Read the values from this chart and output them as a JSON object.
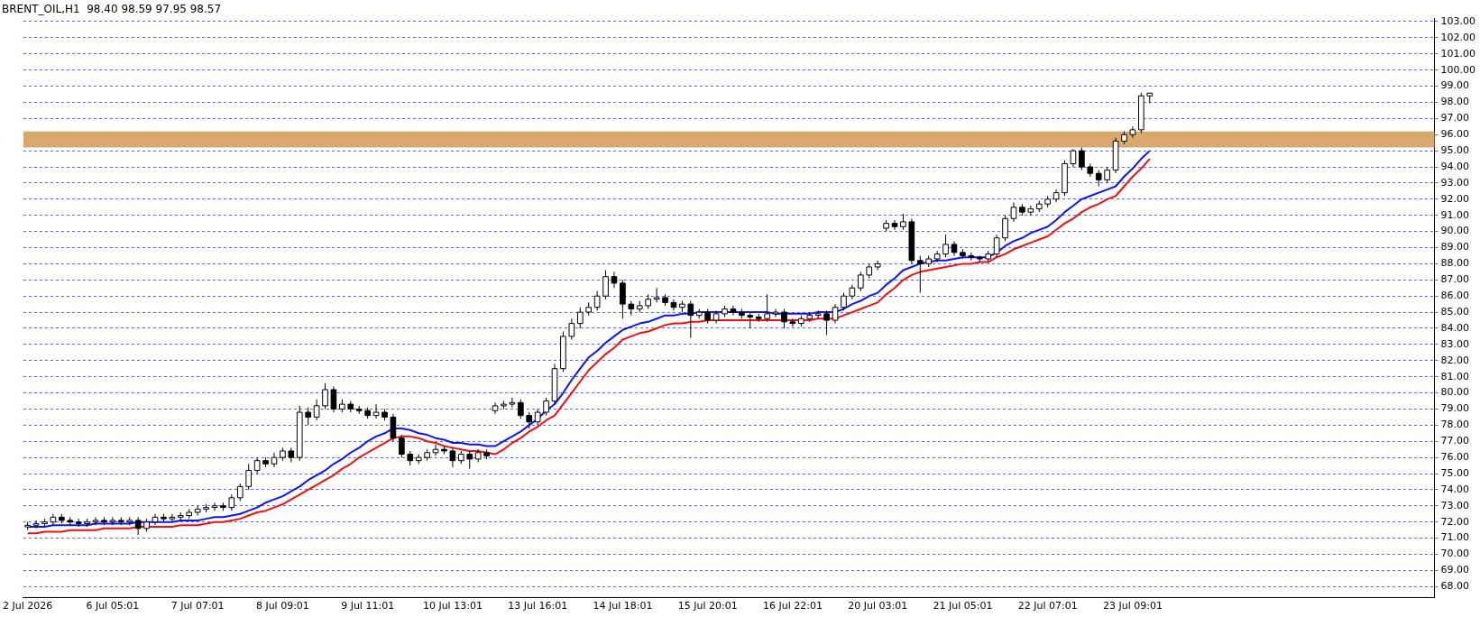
{
  "chart_data": {
    "type": "candlestick",
    "title": "BRENT_OIL,H1  98.40 98.59 97.95 98.57",
    "categories": [
      "2 Jul 2026",
      null,
      null,
      null,
      null,
      null,
      null,
      null,
      null,
      null,
      "6 Jul 05:01",
      null,
      null,
      null,
      null,
      null,
      null,
      null,
      null,
      null,
      "7 Jul 07:01",
      null,
      null,
      null,
      null,
      null,
      null,
      null,
      null,
      null,
      "8 Jul 09:01",
      null,
      null,
      null,
      null,
      null,
      null,
      null,
      null,
      null,
      "9 Jul 11:01",
      null,
      null,
      null,
      null,
      null,
      null,
      null,
      null,
      null,
      "10 Jul 13:01",
      null,
      null,
      null,
      null,
      null,
      null,
      null,
      null,
      null,
      "13 Jul 16:01",
      null,
      null,
      null,
      null,
      null,
      null,
      null,
      null,
      null,
      "14 Jul 18:01",
      null,
      null,
      null,
      null,
      null,
      null,
      null,
      null,
      null,
      "15 Jul 20:01",
      null,
      null,
      null,
      null,
      null,
      null,
      null,
      null,
      null,
      "16 Jul 22:01",
      null,
      null,
      null,
      null,
      null,
      null,
      null,
      null,
      null,
      "20 Jul 03:01",
      null,
      null,
      null,
      null,
      null,
      null,
      null,
      null,
      null,
      "21 Jul 05:01",
      null,
      null,
      null,
      null,
      null,
      null,
      null,
      null,
      null,
      "22 Jul 07:01",
      null,
      null,
      null,
      null,
      null,
      null,
      null,
      null,
      null,
      "23 Jul 09:01",
      null,
      null,
      null,
      null,
      null,
      null,
      null,
      null,
      null,
      null,
      null,
      null,
      null,
      null,
      null,
      null,
      null,
      null,
      null,
      null,
      null,
      null,
      null,
      null,
      null,
      null,
      null,
      null,
      null,
      null,
      null,
      null,
      null,
      null,
      null
    ],
    "ohlc": [
      [
        71.7,
        72.0,
        71.5,
        71.8
      ],
      [
        71.8,
        72.1,
        71.6,
        71.9
      ],
      [
        71.9,
        72.2,
        71.7,
        72.0
      ],
      [
        72.0,
        72.5,
        71.8,
        72.3
      ],
      [
        72.3,
        72.5,
        71.9,
        72.1
      ],
      [
        72.1,
        72.3,
        71.8,
        72.0
      ],
      [
        72.0,
        72.2,
        71.7,
        71.9
      ],
      [
        71.9,
        72.2,
        71.7,
        72.0
      ],
      [
        72.0,
        72.3,
        71.8,
        72.1
      ],
      [
        72.1,
        72.3,
        71.8,
        72.0
      ],
      [
        72.0,
        72.3,
        71.8,
        72.1
      ],
      [
        72.1,
        72.3,
        71.8,
        72.0
      ],
      [
        72.0,
        72.3,
        71.8,
        72.1
      ],
      [
        72.1,
        72.3,
        71.2,
        71.6
      ],
      [
        71.6,
        72.2,
        71.4,
        72.0
      ],
      [
        72.0,
        72.5,
        71.8,
        72.3
      ],
      [
        72.3,
        72.5,
        72.0,
        72.2
      ],
      [
        72.2,
        72.5,
        72.0,
        72.3
      ],
      [
        72.3,
        72.6,
        72.1,
        72.4
      ],
      [
        72.4,
        72.8,
        72.2,
        72.6
      ],
      [
        72.6,
        73.0,
        72.4,
        72.8
      ],
      [
        72.8,
        73.1,
        72.6,
        72.9
      ],
      [
        72.9,
        73.2,
        72.7,
        73.0
      ],
      [
        73.0,
        73.2,
        72.7,
        72.9
      ],
      [
        72.9,
        73.7,
        72.7,
        73.5
      ],
      [
        73.5,
        74.4,
        73.3,
        74.2
      ],
      [
        74.2,
        75.6,
        74.0,
        75.2
      ],
      [
        75.2,
        76.0,
        75.0,
        75.8
      ],
      [
        75.8,
        76.0,
        75.4,
        75.6
      ],
      [
        75.6,
        76.3,
        75.4,
        76.0
      ],
      [
        76.0,
        76.6,
        75.8,
        76.4
      ],
      [
        76.4,
        76.6,
        75.7,
        76.0
      ],
      [
        76.0,
        79.2,
        75.8,
        78.8
      ],
      [
        78.8,
        79.1,
        78.0,
        78.5
      ],
      [
        78.5,
        79.6,
        78.3,
        79.2
      ],
      [
        79.2,
        80.6,
        79.0,
        80.2
      ],
      [
        80.2,
        80.4,
        78.8,
        79.0
      ],
      [
        79.0,
        79.6,
        78.8,
        79.3
      ],
      [
        79.3,
        79.5,
        78.8,
        79.0
      ],
      [
        79.0,
        79.2,
        78.7,
        78.9
      ],
      [
        78.9,
        79.1,
        78.4,
        78.6
      ],
      [
        78.6,
        79.3,
        78.4,
        78.8
      ],
      [
        78.8,
        79.0,
        78.3,
        78.5
      ],
      [
        78.5,
        78.7,
        77.0,
        77.2
      ],
      [
        77.2,
        77.4,
        76.0,
        76.2
      ],
      [
        76.2,
        76.4,
        75.5,
        75.8
      ],
      [
        75.8,
        76.2,
        75.6,
        76.0
      ],
      [
        76.0,
        76.5,
        75.8,
        76.3
      ],
      [
        76.3,
        76.8,
        76.1,
        76.5
      ],
      [
        76.5,
        76.7,
        76.2,
        76.4
      ],
      [
        76.4,
        76.6,
        75.4,
        75.8
      ],
      [
        75.8,
        76.4,
        75.6,
        76.2
      ],
      [
        76.2,
        76.4,
        75.3,
        75.9
      ],
      [
        75.9,
        76.5,
        75.7,
        76.3
      ],
      [
        76.3,
        76.5,
        75.9,
        76.1
      ],
      [
        78.9,
        79.4,
        78.7,
        79.2
      ],
      [
        79.2,
        79.5,
        79.0,
        79.3
      ],
      [
        79.3,
        79.7,
        79.1,
        79.4
      ],
      [
        79.4,
        79.6,
        78.4,
        78.6
      ],
      [
        78.6,
        78.8,
        77.8,
        78.2
      ],
      [
        78.2,
        79.0,
        78.0,
        78.8
      ],
      [
        78.8,
        79.7,
        78.6,
        79.5
      ],
      [
        79.5,
        81.8,
        79.3,
        81.5
      ],
      [
        81.5,
        83.8,
        81.3,
        83.5
      ],
      [
        83.5,
        84.6,
        83.3,
        84.3
      ],
      [
        84.3,
        85.3,
        84.0,
        85.0
      ],
      [
        85.0,
        85.6,
        84.8,
        85.3
      ],
      [
        85.3,
        86.3,
        85.1,
        86.0
      ],
      [
        86.0,
        87.6,
        85.8,
        87.2
      ],
      [
        87.2,
        87.5,
        86.5,
        86.8
      ],
      [
        86.8,
        87.0,
        84.6,
        85.5
      ],
      [
        85.5,
        85.7,
        84.8,
        85.2
      ],
      [
        85.2,
        85.7,
        85.0,
        85.4
      ],
      [
        85.4,
        86.1,
        85.2,
        85.8
      ],
      [
        85.8,
        86.5,
        85.6,
        85.9
      ],
      [
        85.9,
        86.1,
        85.4,
        85.6
      ],
      [
        85.6,
        85.8,
        85.1,
        85.3
      ],
      [
        85.3,
        85.7,
        85.0,
        85.5
      ],
      [
        85.5,
        85.7,
        83.4,
        84.8
      ],
      [
        84.8,
        85.2,
        84.6,
        85.0
      ],
      [
        85.0,
        85.2,
        84.3,
        84.5
      ],
      [
        84.5,
        85.1,
        84.3,
        84.9
      ],
      [
        84.9,
        85.4,
        84.7,
        85.2
      ],
      [
        85.2,
        85.4,
        84.8,
        85.0
      ],
      [
        85.0,
        85.2,
        84.6,
        84.8
      ],
      [
        84.8,
        85.0,
        84.0,
        84.7
      ],
      [
        84.7,
        84.9,
        84.4,
        84.6
      ],
      [
        84.6,
        86.1,
        84.4,
        84.9
      ],
      [
        84.9,
        85.2,
        84.7,
        85.0
      ],
      [
        85.0,
        85.2,
        84.0,
        84.4
      ],
      [
        84.4,
        84.6,
        84.1,
        84.3
      ],
      [
        84.3,
        84.8,
        84.1,
        84.6
      ],
      [
        84.6,
        85.0,
        84.4,
        84.8
      ],
      [
        84.8,
        85.1,
        84.6,
        84.9
      ],
      [
        84.9,
        85.1,
        83.6,
        84.5
      ],
      [
        84.5,
        85.5,
        84.3,
        85.3
      ],
      [
        85.3,
        86.2,
        85.1,
        86.0
      ],
      [
        86.0,
        86.7,
        85.8,
        86.5
      ],
      [
        86.5,
        87.5,
        86.3,
        87.3
      ],
      [
        87.3,
        88.0,
        87.1,
        87.8
      ],
      [
        87.8,
        88.2,
        87.6,
        88.0
      ],
      [
        90.2,
        90.7,
        90.0,
        90.5
      ],
      [
        90.5,
        90.7,
        90.1,
        90.3
      ],
      [
        90.3,
        91.1,
        90.1,
        90.6
      ],
      [
        90.6,
        90.8,
        88.0,
        88.2
      ],
      [
        88.2,
        88.5,
        86.2,
        88.0
      ],
      [
        88.0,
        88.5,
        87.8,
        88.3
      ],
      [
        88.3,
        88.8,
        88.1,
        88.6
      ],
      [
        88.6,
        89.8,
        88.4,
        89.2
      ],
      [
        89.2,
        89.4,
        88.5,
        88.7
      ],
      [
        88.7,
        88.9,
        88.3,
        88.5
      ],
      [
        88.5,
        88.7,
        88.2,
        88.4
      ],
      [
        88.4,
        88.5,
        88.1,
        88.3
      ],
      [
        88.3,
        88.8,
        88.1,
        88.6
      ],
      [
        88.6,
        89.8,
        88.4,
        89.6
      ],
      [
        89.6,
        91.0,
        89.4,
        90.8
      ],
      [
        90.8,
        91.8,
        90.6,
        91.5
      ],
      [
        91.5,
        91.7,
        91.0,
        91.2
      ],
      [
        91.2,
        91.6,
        91.0,
        91.4
      ],
      [
        91.4,
        91.9,
        91.2,
        91.7
      ],
      [
        91.7,
        92.2,
        91.5,
        92.0
      ],
      [
        92.0,
        92.6,
        91.8,
        92.4
      ],
      [
        92.4,
        94.4,
        92.2,
        94.2
      ],
      [
        94.2,
        95.1,
        94.0,
        95.0
      ],
      [
        95.0,
        95.2,
        93.8,
        94.0
      ],
      [
        94.0,
        94.2,
        93.4,
        93.6
      ],
      [
        93.6,
        93.8,
        92.8,
        93.2
      ],
      [
        93.2,
        94.0,
        93.0,
        93.8
      ],
      [
        93.8,
        95.8,
        93.6,
        95.6
      ],
      [
        95.6,
        96.2,
        95.4,
        96.0
      ],
      [
        96.0,
        96.5,
        95.8,
        96.3
      ],
      [
        96.3,
        98.6,
        96.1,
        98.4
      ],
      [
        98.4,
        98.59,
        97.95,
        98.57
      ],
      null,
      null,
      null,
      null,
      null,
      null,
      null,
      null,
      null,
      null,
      null,
      null,
      null,
      null,
      null,
      null,
      null,
      null,
      null,
      null,
      null,
      null,
      null,
      null,
      null,
      null,
      null,
      null,
      null,
      null,
      null,
      null,
      null
    ],
    "series": [
      {
        "type": "line",
        "color": "#0a14ff",
        "values": [
          71.7,
          71.7,
          71.7,
          71.8,
          71.8,
          71.8,
          71.8,
          71.8,
          71.9,
          71.9,
          71.9,
          71.9,
          71.9,
          72.0,
          72.0,
          72.0,
          72.0,
          72.0,
          72.1,
          72.1,
          72.1,
          72.2,
          72.3,
          72.3,
          72.4,
          72.5,
          72.7,
          72.9,
          73.2,
          73.4,
          73.6,
          73.9,
          74.2,
          74.6,
          74.9,
          75.2,
          75.6,
          75.9,
          76.3,
          76.6,
          77.0,
          77.3,
          77.5,
          77.8,
          77.8,
          77.7,
          77.5,
          77.4,
          77.2,
          77.1,
          76.9,
          76.9,
          76.8,
          76.8,
          76.7,
          76.7,
          77.0,
          77.3,
          77.6,
          78.0,
          78.4,
          78.9,
          79.3,
          80.0,
          80.8,
          81.5,
          82.2,
          82.6,
          83.1,
          83.5,
          83.9,
          84.1,
          84.3,
          84.4,
          84.6,
          84.8,
          84.8,
          84.9,
          84.9,
          85.0,
          85.0,
          85.0,
          85.0,
          85.0,
          85.0,
          85.0,
          85.0,
          85.0,
          84.9,
          84.9,
          84.9,
          84.9,
          84.9,
          85.0,
          85.0,
          85.0,
          85.2,
          85.5,
          85.7,
          86.0,
          86.2,
          86.7,
          87.1,
          87.6,
          87.8,
          88.0,
          88.1,
          88.2,
          88.2,
          88.3,
          88.4,
          88.4,
          88.4,
          88.4,
          88.7,
          89.1,
          89.4,
          89.6,
          89.9,
          90.1,
          90.3,
          90.7,
          91.2,
          91.6,
          92.0,
          92.2,
          92.4,
          92.6,
          92.8,
          93.4,
          93.9,
          94.5,
          95.0,
          null,
          null,
          null,
          null,
          null,
          null,
          null,
          null,
          null,
          null,
          null,
          null,
          null,
          null,
          null,
          null,
          null,
          null,
          null,
          null,
          null,
          null,
          null,
          null,
          null,
          null,
          null,
          null,
          null,
          null,
          null,
          null,
          null
        ]
      },
      {
        "type": "line",
        "color": "#f01010",
        "values": [
          71.3,
          71.3,
          71.4,
          71.4,
          71.4,
          71.5,
          71.5,
          71.5,
          71.5,
          71.6,
          71.6,
          71.6,
          71.6,
          71.7,
          71.7,
          71.7,
          71.7,
          71.7,
          71.8,
          71.8,
          71.8,
          71.9,
          72.0,
          72.0,
          72.1,
          72.2,
          72.4,
          72.6,
          72.7,
          72.9,
          73.1,
          73.4,
          73.7,
          74.0,
          74.3,
          74.6,
          74.9,
          75.3,
          75.6,
          76.0,
          76.3,
          76.6,
          76.9,
          77.2,
          77.3,
          77.3,
          77.2,
          77.0,
          76.9,
          76.7,
          76.6,
          76.5,
          76.4,
          76.4,
          76.3,
          76.2,
          76.5,
          76.9,
          77.2,
          77.6,
          77.9,
          78.3,
          78.6,
          79.3,
          80.0,
          80.7,
          81.4,
          81.9,
          82.4,
          82.8,
          83.3,
          83.5,
          83.7,
          83.8,
          84.0,
          84.2,
          84.3,
          84.3,
          84.4,
          84.4,
          84.5,
          84.5,
          84.5,
          84.5,
          84.5,
          84.5,
          84.5,
          84.5,
          84.5,
          84.5,
          84.5,
          84.5,
          84.5,
          84.6,
          84.6,
          84.6,
          84.8,
          85.0,
          85.2,
          85.4,
          85.6,
          86.1,
          86.5,
          87.0,
          87.3,
          87.5,
          87.6,
          87.7,
          87.8,
          87.9,
          88.0,
          88.0,
          88.1,
          88.1,
          88.4,
          88.6,
          88.9,
          89.1,
          89.3,
          89.5,
          89.7,
          90.1,
          90.5,
          90.8,
          91.2,
          91.5,
          91.7,
          92.0,
          92.2,
          92.8,
          93.4,
          93.9,
          94.5,
          null,
          null,
          null,
          null,
          null,
          null,
          null,
          null,
          null,
          null,
          null,
          null,
          null,
          null,
          null,
          null,
          null,
          null,
          null,
          null,
          null,
          null,
          null,
          null,
          null,
          null,
          null,
          null,
          null,
          null,
          null,
          null,
          null
        ]
      }
    ],
    "bands": [
      {
        "axis": "y",
        "from": 95.2,
        "to": 96.2,
        "color": "#d9a86c"
      }
    ],
    "ylim": [
      67.3,
      103.2
    ],
    "yticks": [
      {
        "value": 68,
        "label": "68.00"
      },
      {
        "value": 69,
        "label": "69.00"
      },
      {
        "value": 70,
        "label": "70.00"
      },
      {
        "value": 71,
        "label": "71.00"
      },
      {
        "value": 72,
        "label": "72.00"
      },
      {
        "value": 73,
        "label": "73.00"
      },
      {
        "value": 74,
        "label": "74.00"
      },
      {
        "value": 75,
        "label": "75.00"
      },
      {
        "value": 76,
        "label": "76.00"
      },
      {
        "value": 77,
        "label": "77.00"
      },
      {
        "value": 78,
        "label": "78.00"
      },
      {
        "value": 79,
        "label": "79.00"
      },
      {
        "value": 80,
        "label": "80.00"
      },
      {
        "value": 81,
        "label": "81.00"
      },
      {
        "value": 82,
        "label": "82.00"
      },
      {
        "value": 83,
        "label": "83.00"
      },
      {
        "value": 84,
        "label": "84.00"
      },
      {
        "value": 85,
        "label": "85.00"
      },
      {
        "value": 86,
        "label": "86.00"
      },
      {
        "value": 87,
        "label": "87.00"
      },
      {
        "value": 88,
        "label": "88.00"
      },
      {
        "value": 89,
        "label": "89.00"
      },
      {
        "value": 90,
        "label": "90.00"
      },
      {
        "value": 91,
        "label": "91.00"
      },
      {
        "value": 92,
        "label": "92.00"
      },
      {
        "value": 93,
        "label": "93.00"
      },
      {
        "value": 94,
        "label": "94.00"
      },
      {
        "value": 95,
        "label": "95.00"
      },
      {
        "value": 96,
        "label": "96.00"
      },
      {
        "value": 97,
        "label": "97.00"
      },
      {
        "value": 98,
        "label": "98.00"
      },
      {
        "value": 99,
        "label": "99.00"
      },
      {
        "value": 100,
        "label": "100.00"
      },
      {
        "value": 101,
        "label": "101.00"
      },
      {
        "value": 102,
        "label": "102.00"
      },
      {
        "value": 103,
        "label": "103.00"
      }
    ],
    "grid": "y",
    "legend": false
  }
}
